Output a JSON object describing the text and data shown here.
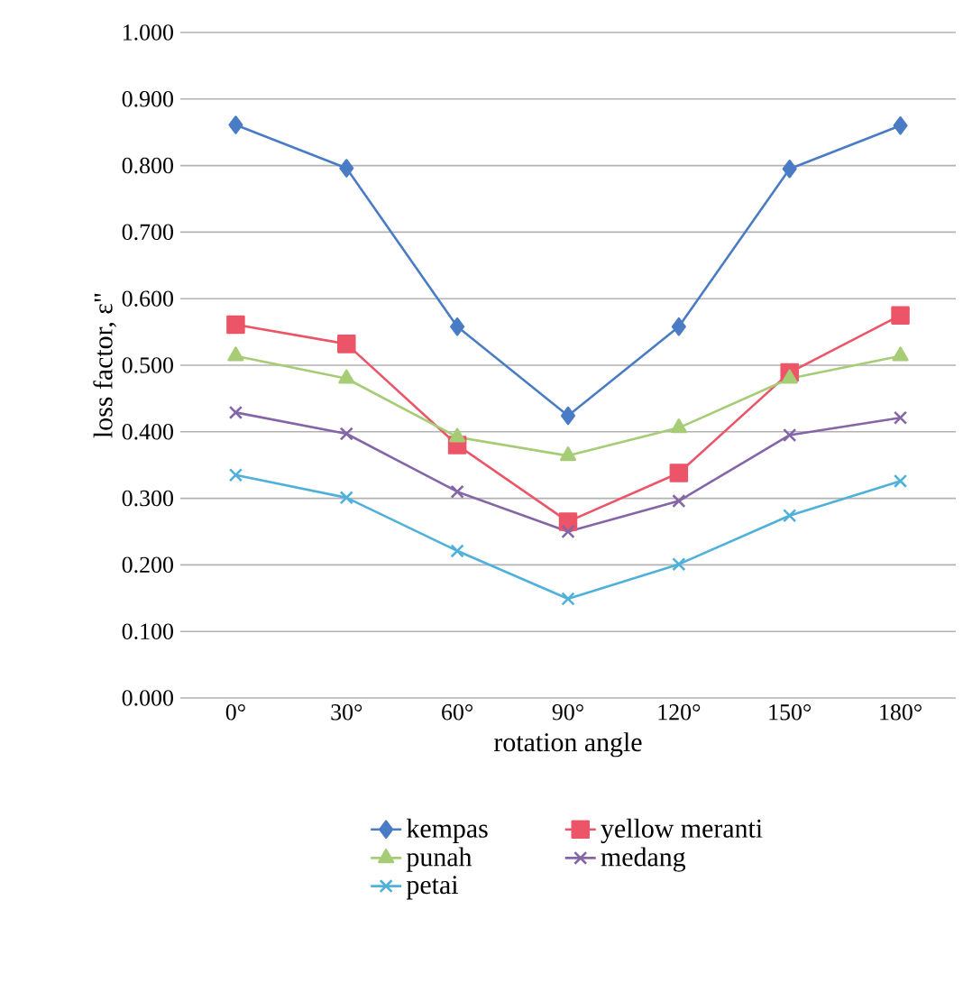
{
  "chart_data": {
    "type": "line",
    "xlabel": "rotation angle",
    "ylabel": "loss factor, ε\"",
    "categories": [
      "0°",
      "30°",
      "60°",
      "90°",
      "120°",
      "150°",
      "180°"
    ],
    "ylim": [
      0,
      1
    ],
    "yticks": [
      {
        "value": 0,
        "label": "0.000"
      },
      {
        "value": 0.1,
        "label": "0.100"
      },
      {
        "value": 0.2,
        "label": "0.200"
      },
      {
        "value": 0.3,
        "label": "0.300"
      },
      {
        "value": 0.4,
        "label": "0.400"
      },
      {
        "value": 0.5,
        "label": "0.500"
      },
      {
        "value": 0.6,
        "label": "0.600"
      },
      {
        "value": 0.7,
        "label": "0.700"
      },
      {
        "value": 0.8,
        "label": "0.800"
      },
      {
        "value": 0.9,
        "label": "0.900"
      },
      {
        "value": 1,
        "label": "1.000"
      }
    ],
    "grid": "y",
    "legend": "bottom",
    "series": [
      {
        "name": "kempas",
        "color": "#4a7cc6",
        "marker": "diamond",
        "values": [
          0.861,
          0.796,
          0.558,
          0.424,
          0.558,
          0.795,
          0.86
        ]
      },
      {
        "name": "yellow meranti",
        "color": "#ec5468",
        "marker": "square",
        "values": [
          0.561,
          0.532,
          0.38,
          0.265,
          0.338,
          0.489,
          0.575
        ]
      },
      {
        "name": "punah",
        "color": "#a6cc76",
        "marker": "triangle",
        "values": [
          0.514,
          0.48,
          0.392,
          0.364,
          0.406,
          0.48,
          0.514
        ]
      },
      {
        "name": "medang",
        "color": "#8466a8",
        "marker": "cross",
        "values": [
          0.429,
          0.397,
          0.31,
          0.25,
          0.296,
          0.395,
          0.421
        ]
      },
      {
        "name": "petai",
        "color": "#4fb1da",
        "marker": "cross",
        "values": [
          0.335,
          0.301,
          0.221,
          0.149,
          0.201,
          0.274,
          0.326
        ]
      }
    ]
  }
}
